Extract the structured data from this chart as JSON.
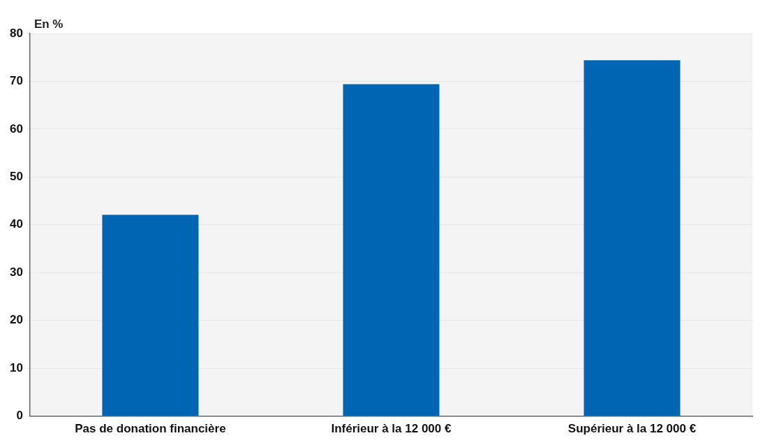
{
  "chart_data": {
    "type": "bar",
    "ylabel": "En %",
    "categories": [
      "Pas de donation financière",
      "Inférieur à la 12 000 €",
      "Supérieur à la 12 000 €"
    ],
    "values": [
      42.1,
      69.4,
      74.4
    ],
    "color": "#0066b3",
    "ylim": [
      0,
      80
    ],
    "yticks": [
      0,
      10,
      20,
      30,
      40,
      50,
      60,
      70,
      80
    ],
    "grid": "y",
    "legend": false
  }
}
